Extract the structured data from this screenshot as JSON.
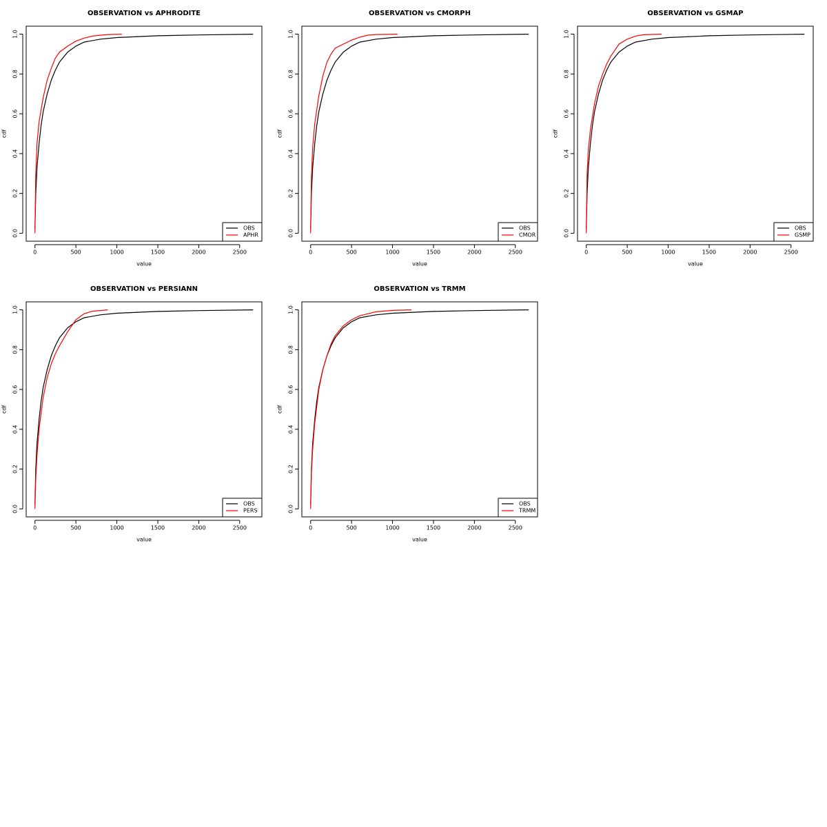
{
  "chart_data": [
    {
      "type": "line",
      "title": "OBSERVATION vs APHRODITE",
      "xlabel": "value",
      "ylabel": "cdf",
      "xlim": [
        -107,
        2771
      ],
      "ylim": [
        -0.04,
        1.04
      ],
      "xticks": [
        0,
        500,
        1000,
        1500,
        2000,
        2500
      ],
      "yticks": [
        {
          "value": 0,
          "label": "0.0"
        },
        0.2,
        0.4,
        0.6,
        0.8,
        {
          "value": 1,
          "label": "1.0"
        }
      ],
      "legend": "bottom-right",
      "series": [
        {
          "name": "OBS",
          "color": "#000000",
          "x": [
            0,
            10,
            25,
            50,
            75,
            100,
            150,
            200,
            250,
            300,
            400,
            500,
            600,
            800,
            1000,
            1500,
            2000,
            2664
          ],
          "values": [
            0.02,
            0.2,
            0.33,
            0.45,
            0.54,
            0.61,
            0.7,
            0.77,
            0.82,
            0.86,
            0.91,
            0.94,
            0.96,
            0.975,
            0.983,
            0.992,
            0.996,
            1
          ]
        },
        {
          "name": "APHR",
          "color": "#ff0000",
          "x": [
            0,
            10,
            25,
            50,
            100,
            150,
            200,
            250,
            300,
            400,
            500,
            600,
            700,
            800,
            900,
            1060
          ],
          "values": [
            0,
            0.3,
            0.45,
            0.56,
            0.68,
            0.77,
            0.83,
            0.88,
            0.91,
            0.94,
            0.965,
            0.98,
            0.99,
            0.995,
            0.998,
            1
          ]
        }
      ]
    },
    {
      "type": "line",
      "title": "OBSERVATION vs CMORPH",
      "xlabel": "value",
      "ylabel": "cdf",
      "xlim": [
        -107,
        2771
      ],
      "ylim": [
        -0.04,
        1.04
      ],
      "xticks": [
        0,
        500,
        1000,
        1500,
        2000,
        2500
      ],
      "yticks": [
        {
          "value": 0,
          "label": "0.0"
        },
        0.2,
        0.4,
        0.6,
        0.8,
        {
          "value": 1,
          "label": "1.0"
        }
      ],
      "legend": "bottom-right",
      "series": [
        {
          "name": "OBS",
          "color": "#000000",
          "x": [
            0,
            10,
            25,
            50,
            75,
            100,
            150,
            200,
            250,
            300,
            400,
            500,
            600,
            800,
            1000,
            1500,
            2000,
            2664
          ],
          "values": [
            0.02,
            0.2,
            0.33,
            0.45,
            0.54,
            0.61,
            0.7,
            0.77,
            0.82,
            0.86,
            0.91,
            0.94,
            0.96,
            0.975,
            0.983,
            0.992,
            0.996,
            1
          ]
        },
        {
          "name": "CMOR",
          "color": "#ff0000",
          "x": [
            0,
            10,
            25,
            50,
            100,
            150,
            200,
            250,
            300,
            400,
            500,
            600,
            700,
            800,
            1060
          ],
          "values": [
            0,
            0.28,
            0.43,
            0.55,
            0.69,
            0.79,
            0.86,
            0.9,
            0.93,
            0.95,
            0.97,
            0.985,
            0.995,
            0.998,
            1
          ]
        }
      ]
    },
    {
      "type": "line",
      "title": "OBSERVATION vs GSMAP",
      "xlabel": "value",
      "ylabel": "cdf",
      "xlim": [
        -107,
        2771
      ],
      "ylim": [
        -0.04,
        1.04
      ],
      "xticks": [
        0,
        500,
        1000,
        1500,
        2000,
        2500
      ],
      "yticks": [
        {
          "value": 0,
          "label": "0.0"
        },
        0.2,
        0.4,
        0.6,
        0.8,
        {
          "value": 1,
          "label": "1.0"
        }
      ],
      "legend": "bottom-right",
      "series": [
        {
          "name": "OBS",
          "color": "#000000",
          "x": [
            0,
            10,
            25,
            50,
            75,
            100,
            150,
            200,
            250,
            300,
            400,
            500,
            600,
            800,
            1000,
            1500,
            2000,
            2664
          ],
          "values": [
            0.02,
            0.2,
            0.33,
            0.45,
            0.54,
            0.61,
            0.7,
            0.77,
            0.82,
            0.86,
            0.91,
            0.94,
            0.96,
            0.975,
            0.983,
            0.992,
            0.996,
            1
          ]
        },
        {
          "name": "GSMP",
          "color": "#ff0000",
          "x": [
            0,
            10,
            25,
            50,
            100,
            150,
            200,
            250,
            300,
            350,
            400,
            500,
            600,
            700,
            920
          ],
          "values": [
            0,
            0.3,
            0.42,
            0.52,
            0.65,
            0.74,
            0.8,
            0.85,
            0.89,
            0.92,
            0.95,
            0.975,
            0.99,
            0.997,
            1
          ]
        }
      ]
    },
    {
      "type": "line",
      "title": "OBSERVATION vs PERSIANN",
      "xlabel": "value",
      "ylabel": "cdf",
      "xlim": [
        -107,
        2771
      ],
      "ylim": [
        -0.04,
        1.04
      ],
      "xticks": [
        0,
        500,
        1000,
        1500,
        2000,
        2500
      ],
      "yticks": [
        {
          "value": 0,
          "label": "0.0"
        },
        0.2,
        0.4,
        0.6,
        0.8,
        {
          "value": 1,
          "label": "1.0"
        }
      ],
      "legend": "bottom-right",
      "series": [
        {
          "name": "OBS",
          "color": "#000000",
          "x": [
            0,
            10,
            25,
            50,
            75,
            100,
            150,
            200,
            250,
            300,
            400,
            500,
            600,
            800,
            1000,
            1500,
            2000,
            2664
          ],
          "values": [
            0.02,
            0.2,
            0.33,
            0.45,
            0.54,
            0.61,
            0.7,
            0.77,
            0.82,
            0.86,
            0.91,
            0.94,
            0.96,
            0.975,
            0.983,
            0.992,
            0.996,
            1
          ]
        },
        {
          "name": "PERS",
          "color": "#ff0000",
          "x": [
            0,
            10,
            25,
            50,
            100,
            150,
            200,
            250,
            300,
            400,
            500,
            600,
            700,
            890
          ],
          "values": [
            0,
            0.15,
            0.27,
            0.4,
            0.56,
            0.66,
            0.73,
            0.78,
            0.82,
            0.89,
            0.95,
            0.98,
            0.993,
            1
          ]
        }
      ]
    },
    {
      "type": "line",
      "title": "OBSERVATION vs TRMM",
      "xlabel": "value",
      "ylabel": "cdf",
      "xlim": [
        -107,
        2771
      ],
      "ylim": [
        -0.04,
        1.04
      ],
      "xticks": [
        0,
        500,
        1000,
        1500,
        2000,
        2500
      ],
      "yticks": [
        {
          "value": 0,
          "label": "0.0"
        },
        0.2,
        0.4,
        0.6,
        0.8,
        {
          "value": 1,
          "label": "1.0"
        }
      ],
      "legend": "bottom-right",
      "series": [
        {
          "name": "OBS",
          "color": "#000000",
          "x": [
            0,
            10,
            25,
            50,
            75,
            100,
            150,
            200,
            250,
            300,
            400,
            500,
            600,
            800,
            1000,
            1500,
            2000,
            2664
          ],
          "values": [
            0.02,
            0.2,
            0.33,
            0.45,
            0.54,
            0.61,
            0.7,
            0.77,
            0.82,
            0.86,
            0.91,
            0.94,
            0.96,
            0.975,
            0.983,
            0.992,
            0.996,
            1
          ]
        },
        {
          "name": "TRMM",
          "color": "#ff0000",
          "x": [
            0,
            10,
            25,
            50,
            100,
            150,
            200,
            250,
            300,
            400,
            500,
            600,
            800,
            1000,
            1230
          ],
          "values": [
            0,
            0.18,
            0.3,
            0.43,
            0.6,
            0.7,
            0.77,
            0.83,
            0.87,
            0.92,
            0.95,
            0.97,
            0.99,
            0.997,
            1
          ]
        }
      ]
    }
  ]
}
